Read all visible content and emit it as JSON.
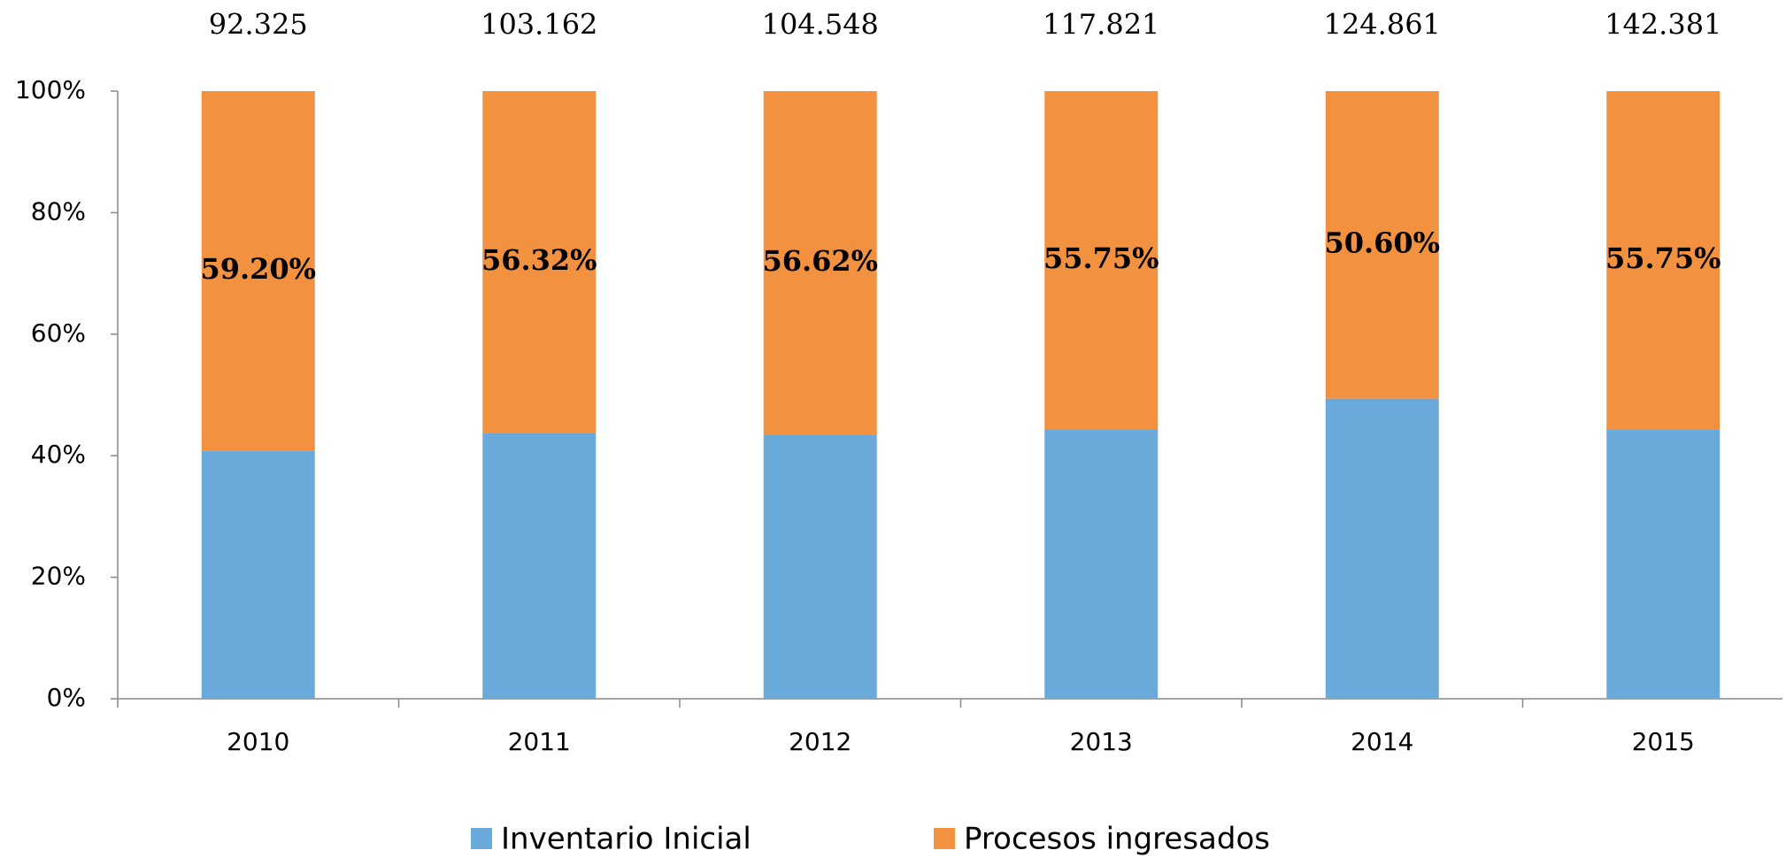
{
  "chart_data": {
    "type": "stacked_percent_bar",
    "categories": [
      "2010",
      "2011",
      "2012",
      "2013",
      "2014",
      "2015"
    ],
    "annotations": [
      "92.325",
      "103.162",
      "104.548",
      "117.821",
      "124.861",
      "142.381"
    ],
    "series": [
      {
        "name": "Inventario Inicial",
        "color": "#6aaadb",
        "values": [
          40.8,
          43.68,
          43.38,
          44.25,
          49.4,
          44.25
        ]
      },
      {
        "name": "Procesos ingresados",
        "color": "#f29140",
        "values": [
          59.2,
          56.32,
          56.62,
          55.75,
          50.6,
          55.75
        ],
        "value_labels": [
          "59.20%",
          "56.32%",
          "56.62%",
          "55.75%",
          "50.60%",
          "55.75%"
        ]
      }
    ],
    "ylim": [
      0,
      100
    ],
    "yticks": [
      {
        "value": 0,
        "label": "0%"
      },
      {
        "value": 20,
        "label": "20%"
      },
      {
        "value": 40,
        "label": "40%"
      },
      {
        "value": 60,
        "label": "60%"
      },
      {
        "value": 80,
        "label": "80%"
      },
      {
        "value": 100,
        "label": "100%"
      }
    ],
    "legend": "bottom"
  }
}
